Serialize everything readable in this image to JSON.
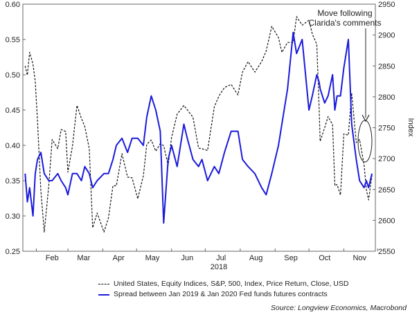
{
  "chart_data": {
    "type": "line",
    "xlabel": "2018",
    "month_labels": [
      "Feb",
      "Mar",
      "Apr",
      "May",
      "Jun",
      "Jul",
      "Aug",
      "Sep",
      "Oct",
      "Nov"
    ],
    "left_axis": {
      "ylim": [
        0.25,
        0.6
      ],
      "ticks": [
        "0.25",
        "0.30",
        "0.35",
        "0.40",
        "0.45",
        "0.50",
        "0.55",
        "0.60"
      ]
    },
    "right_axis": {
      "label": "Index",
      "ylim": [
        2550,
        2950
      ],
      "ticks": [
        "2550",
        "2600",
        "2650",
        "2700",
        "2750",
        "2800",
        "2850",
        "2900",
        "2950"
      ]
    },
    "annotation": {
      "lines": [
        "Move following",
        "Clarida's comments"
      ]
    },
    "source": "Source: Longview Economics, Macrobond",
    "series": [
      {
        "name": "United States, Equity Indices, S&P, 500, Index, Price Return, Close, USD",
        "axis": "right",
        "color": "#111111",
        "style": "dashed",
        "x": [
          "2018-01-22",
          "2018-01-24",
          "2018-01-26",
          "2018-01-29",
          "2018-01-31",
          "2018-02-02",
          "2018-02-05",
          "2018-02-08",
          "2018-02-12",
          "2018-02-15",
          "2018-02-20",
          "2018-02-23",
          "2018-02-27",
          "2018-03-01",
          "2018-03-05",
          "2018-03-09",
          "2018-03-13",
          "2018-03-16",
          "2018-03-20",
          "2018-03-23",
          "2018-03-27",
          "2018-04-02",
          "2018-04-06",
          "2018-04-10",
          "2018-04-13",
          "2018-04-18",
          "2018-04-23",
          "2018-04-27",
          "2018-05-02",
          "2018-05-07",
          "2018-05-10",
          "2018-05-14",
          "2018-05-18",
          "2018-05-22",
          "2018-05-25",
          "2018-05-29",
          "2018-06-01",
          "2018-06-06",
          "2018-06-12",
          "2018-06-15",
          "2018-06-20",
          "2018-06-25",
          "2018-06-28",
          "2018-07-03",
          "2018-07-09",
          "2018-07-13",
          "2018-07-18",
          "2018-07-24",
          "2018-07-30",
          "2018-08-03",
          "2018-08-08",
          "2018-08-14",
          "2018-08-20",
          "2018-08-24",
          "2018-08-29",
          "2018-09-04",
          "2018-09-07",
          "2018-09-12",
          "2018-09-17",
          "2018-09-20",
          "2018-09-25",
          "2018-10-01",
          "2018-10-04",
          "2018-10-08",
          "2018-10-10",
          "2018-10-11",
          "2018-10-15",
          "2018-10-18",
          "2018-10-22",
          "2018-10-24",
          "2018-10-26",
          "2018-10-29",
          "2018-11-01",
          "2018-11-05",
          "2018-11-08",
          "2018-11-12",
          "2018-11-15",
          "2018-11-19",
          "2018-11-21",
          "2018-11-23",
          "2018-11-26"
        ],
        "values": [
          2850,
          2835,
          2872,
          2853,
          2825,
          2762,
          2648,
          2581,
          2656,
          2731,
          2716,
          2747,
          2744,
          2678,
          2720,
          2786,
          2765,
          2752,
          2716,
          2588,
          2612,
          2581,
          2604,
          2656,
          2656,
          2708,
          2670,
          2669,
          2635,
          2672,
          2723,
          2730,
          2712,
          2724,
          2721,
          2689,
          2734,
          2772,
          2786,
          2779,
          2767,
          2717,
          2716,
          2713,
          2784,
          2801,
          2815,
          2820,
          2803,
          2840,
          2857,
          2840,
          2857,
          2874,
          2914,
          2896,
          2872,
          2888,
          2888,
          2930,
          2916,
          2924,
          2902,
          2885,
          2785,
          2728,
          2750,
          2768,
          2755,
          2656,
          2658,
          2641,
          2740,
          2738,
          2806,
          2726,
          2731,
          2690,
          2650,
          2633,
          2673
        ]
      },
      {
        "name": "Spread between Jan 2019 & Jan 2020 Fed funds futures contracts",
        "axis": "left",
        "color": "#1a1adb",
        "style": "solid",
        "x": [
          "2018-01-22",
          "2018-01-24",
          "2018-01-26",
          "2018-01-29",
          "2018-01-31",
          "2018-02-02",
          "2018-02-05",
          "2018-02-08",
          "2018-02-12",
          "2018-02-15",
          "2018-02-20",
          "2018-02-23",
          "2018-02-27",
          "2018-03-01",
          "2018-03-05",
          "2018-03-09",
          "2018-03-13",
          "2018-03-16",
          "2018-03-20",
          "2018-03-23",
          "2018-03-27",
          "2018-04-02",
          "2018-04-06",
          "2018-04-10",
          "2018-04-13",
          "2018-04-18",
          "2018-04-23",
          "2018-04-27",
          "2018-05-02",
          "2018-05-07",
          "2018-05-10",
          "2018-05-14",
          "2018-05-18",
          "2018-05-22",
          "2018-05-25",
          "2018-05-29",
          "2018-06-01",
          "2018-06-06",
          "2018-06-12",
          "2018-06-15",
          "2018-06-20",
          "2018-06-25",
          "2018-06-28",
          "2018-07-03",
          "2018-07-09",
          "2018-07-13",
          "2018-07-18",
          "2018-07-24",
          "2018-07-30",
          "2018-08-03",
          "2018-08-08",
          "2018-08-14",
          "2018-08-20",
          "2018-08-24",
          "2018-08-29",
          "2018-09-04",
          "2018-09-07",
          "2018-09-12",
          "2018-09-17",
          "2018-09-20",
          "2018-09-25",
          "2018-10-01",
          "2018-10-04",
          "2018-10-08",
          "2018-10-10",
          "2018-10-11",
          "2018-10-15",
          "2018-10-18",
          "2018-10-22",
          "2018-10-24",
          "2018-10-26",
          "2018-10-29",
          "2018-11-01",
          "2018-11-05",
          "2018-11-08",
          "2018-11-12",
          "2018-11-15",
          "2018-11-19",
          "2018-11-21",
          "2018-11-23",
          "2018-11-26"
        ],
        "values": [
          0.36,
          0.32,
          0.34,
          0.3,
          0.36,
          0.38,
          0.39,
          0.36,
          0.35,
          0.35,
          0.36,
          0.35,
          0.34,
          0.33,
          0.36,
          0.36,
          0.35,
          0.37,
          0.36,
          0.34,
          0.35,
          0.36,
          0.36,
          0.38,
          0.4,
          0.41,
          0.39,
          0.41,
          0.41,
          0.4,
          0.44,
          0.47,
          0.45,
          0.42,
          0.29,
          0.38,
          0.4,
          0.37,
          0.43,
          0.41,
          0.38,
          0.37,
          0.38,
          0.35,
          0.37,
          0.36,
          0.39,
          0.42,
          0.42,
          0.38,
          0.37,
          0.36,
          0.34,
          0.33,
          0.36,
          0.4,
          0.43,
          0.48,
          0.56,
          0.53,
          0.55,
          0.45,
          0.47,
          0.5,
          0.49,
          0.48,
          0.46,
          0.47,
          0.5,
          0.45,
          0.47,
          0.47,
          0.51,
          0.55,
          0.43,
          0.38,
          0.35,
          0.34,
          0.35,
          0.34,
          0.36
        ]
      }
    ]
  }
}
